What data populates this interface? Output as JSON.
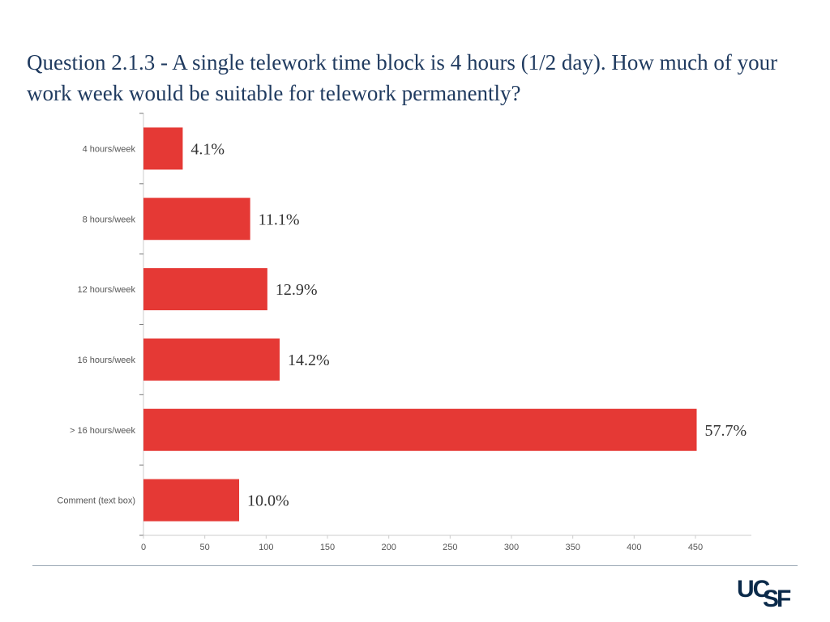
{
  "slide": {
    "title": "Question 2.1.3 - A single telework time block is 4 hours (1/2 day).   How much of your work week would be suitable for telework permanently?",
    "logo": {
      "part1": "UC",
      "part2": "SF"
    }
  },
  "colors": {
    "bar": "#e53935",
    "axis": "#cccccc",
    "title": "#1f3a5f"
  },
  "chart_data": {
    "type": "bar",
    "orientation": "horizontal",
    "categories": [
      "4 hours/week",
      "8 hours/week",
      "12 hours/week",
      "16 hours/week",
      "> 16 hours/week",
      "Comment (text box)"
    ],
    "values": [
      32,
      87,
      101,
      111,
      451,
      78
    ],
    "data_labels": [
      "4.1%",
      "11.1%",
      "12.9%",
      "14.2%",
      "57.7%",
      "10.0%"
    ],
    "xlim": [
      0,
      495
    ],
    "x_ticks": [
      0,
      50,
      100,
      150,
      200,
      250,
      300,
      350,
      400,
      450
    ],
    "title": "",
    "xlabel": "",
    "ylabel": "",
    "grid": false,
    "legend": "none"
  }
}
